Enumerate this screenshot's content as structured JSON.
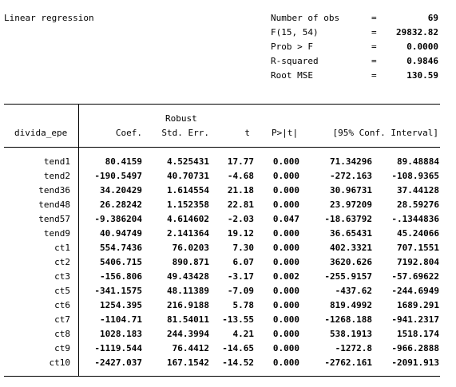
{
  "title": "Linear regression",
  "stats": [
    {
      "label": "Number of obs",
      "eq": "=",
      "value": "69"
    },
    {
      "label": "F(15, 54)",
      "eq": "=",
      "value": "29832.82"
    },
    {
      "label": "Prob > F",
      "eq": "=",
      "value": "0.0000"
    },
    {
      "label": "R-squared",
      "eq": "=",
      "value": "0.9846"
    },
    {
      "label": "Root MSE",
      "eq": "=",
      "value": "130.59"
    }
  ],
  "table": {
    "robust_label": "Robust",
    "depvar": "divida_epe",
    "headers": [
      "Coef.",
      "Std. Err.",
      "t",
      "P>|t|",
      "[95% Conf. Interval]"
    ],
    "rows": [
      {
        "var": "tend1",
        "coef": "80.4159",
        "se": "4.525431",
        "t": "17.77",
        "p": "0.000",
        "lo": "71.34296",
        "hi": "89.48884"
      },
      {
        "var": "tend2",
        "coef": "-190.5497",
        "se": "40.70731",
        "t": "-4.68",
        "p": "0.000",
        "lo": "-272.163",
        "hi": "-108.9365"
      },
      {
        "var": "tend36",
        "coef": "34.20429",
        "se": "1.614554",
        "t": "21.18",
        "p": "0.000",
        "lo": "30.96731",
        "hi": "37.44128"
      },
      {
        "var": "tend48",
        "coef": "26.28242",
        "se": "1.152358",
        "t": "22.81",
        "p": "0.000",
        "lo": "23.97209",
        "hi": "28.59276"
      },
      {
        "var": "tend57",
        "coef": "-9.386204",
        "se": "4.614602",
        "t": "-2.03",
        "p": "0.047",
        "lo": "-18.63792",
        "hi": "-.1344836"
      },
      {
        "var": "tend9",
        "coef": "40.94749",
        "se": "2.141364",
        "t": "19.12",
        "p": "0.000",
        "lo": "36.65431",
        "hi": "45.24066"
      },
      {
        "var": "ct1",
        "coef": "554.7436",
        "se": "76.0203",
        "t": "7.30",
        "p": "0.000",
        "lo": "402.3321",
        "hi": "707.1551"
      },
      {
        "var": "ct2",
        "coef": "5406.715",
        "se": "890.871",
        "t": "6.07",
        "p": "0.000",
        "lo": "3620.626",
        "hi": "7192.804"
      },
      {
        "var": "ct3",
        "coef": "-156.806",
        "se": "49.43428",
        "t": "-3.17",
        "p": "0.002",
        "lo": "-255.9157",
        "hi": "-57.69622"
      },
      {
        "var": "ct5",
        "coef": "-341.1575",
        "se": "48.11389",
        "t": "-7.09",
        "p": "0.000",
        "lo": "-437.62",
        "hi": "-244.6949"
      },
      {
        "var": "ct6",
        "coef": "1254.395",
        "se": "216.9188",
        "t": "5.78",
        "p": "0.000",
        "lo": "819.4992",
        "hi": "1689.291"
      },
      {
        "var": "ct7",
        "coef": "-1104.71",
        "se": "81.54011",
        "t": "-13.55",
        "p": "0.000",
        "lo": "-1268.188",
        "hi": "-941.2317"
      },
      {
        "var": "ct8",
        "coef": "1028.183",
        "se": "244.3994",
        "t": "4.21",
        "p": "0.000",
        "lo": "538.1913",
        "hi": "1518.174"
      },
      {
        "var": "ct9",
        "coef": "-1119.544",
        "se": "76.4412",
        "t": "-14.65",
        "p": "0.000",
        "lo": "-1272.8",
        "hi": "-966.2888"
      },
      {
        "var": "ct10",
        "coef": "-2427.037",
        "se": "167.1542",
        "t": "-14.52",
        "p": "0.000",
        "lo": "-2762.161",
        "hi": "-2091.913"
      }
    ]
  }
}
